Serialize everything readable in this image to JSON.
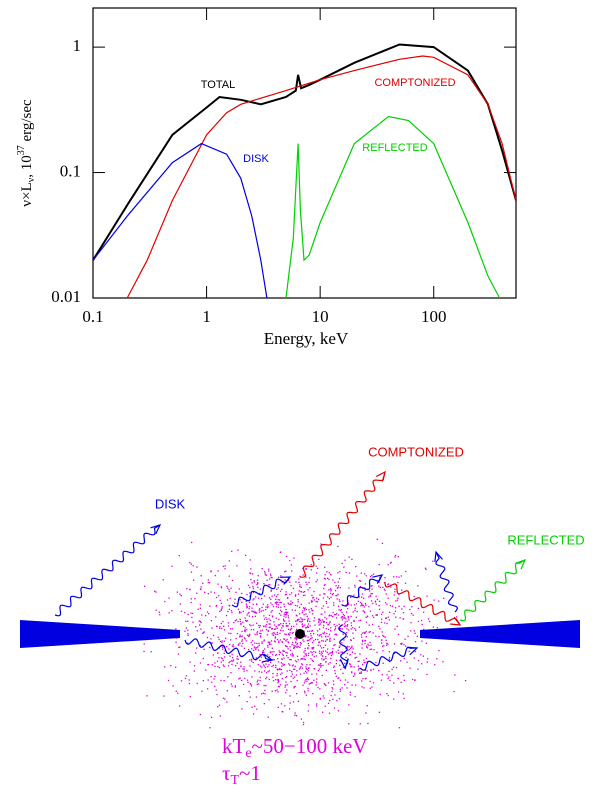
{
  "chart_data": {
    "type": "line",
    "x_label": "Energy, keV",
    "y_label": [
      "ν×L",
      "ν",
      ", 10",
      "37",
      " erg/sec"
    ],
    "log_x": true,
    "log_y": true,
    "xlim": [
      0.1,
      530
    ],
    "ylim": [
      0.01,
      2.05
    ],
    "xticks": [
      0.1,
      1,
      10,
      100
    ],
    "yticks": [
      0.01,
      0.1,
      1
    ],
    "series": [
      {
        "name": "TOTAL",
        "color": "#000000",
        "x": [
          0.1,
          0.2,
          0.5,
          1,
          1.3,
          2,
          3,
          5,
          6.1,
          6.4,
          6.8,
          8,
          10,
          20,
          50,
          100,
          200,
          300,
          400,
          530
        ],
        "values": [
          0.02,
          0.055,
          0.2,
          0.33,
          0.4,
          0.38,
          0.35,
          0.4,
          0.45,
          0.6,
          0.47,
          0.5,
          0.55,
          0.75,
          1.05,
          1.0,
          0.65,
          0.35,
          0.15,
          0.06
        ]
      },
      {
        "name": "COMPTONIZED",
        "color": "#e00000",
        "x": [
          0.2,
          0.3,
          0.5,
          1,
          1.5,
          2,
          5,
          10,
          20,
          50,
          80,
          100,
          200,
          300,
          400,
          530
        ],
        "values": [
          0.01,
          0.02,
          0.06,
          0.2,
          0.3,
          0.35,
          0.45,
          0.55,
          0.65,
          0.8,
          0.85,
          0.83,
          0.6,
          0.35,
          0.17,
          0.06
        ]
      },
      {
        "name": "DISK",
        "color": "#0000e0",
        "x": [
          0.1,
          0.2,
          0.5,
          0.9,
          1.5,
          2,
          2.5,
          3,
          3.4
        ],
        "values": [
          0.02,
          0.045,
          0.12,
          0.17,
          0.14,
          0.09,
          0.045,
          0.02,
          0.01
        ]
      },
      {
        "name": "REFLECTED",
        "color": "#00d000",
        "x": [
          5,
          5.8,
          6.2,
          6.4,
          6.7,
          7.2,
          8,
          10,
          20,
          40,
          60,
          100,
          200,
          300,
          380
        ],
        "values": [
          0.01,
          0.03,
          0.1,
          0.17,
          0.05,
          0.02,
          0.022,
          0.04,
          0.17,
          0.28,
          0.26,
          0.17,
          0.04,
          0.015,
          0.01
        ]
      }
    ]
  },
  "diagram": {
    "comptonized_label": "COMPTONIZED",
    "disk_label": "DISK",
    "reflected_label": "REFLECTED",
    "temperature_label": {
      "main": "kT",
      "sub": "e",
      "rest": "~50−100 keV"
    },
    "optical_depth_label": {
      "main": "τ",
      "sub": "T",
      "rest": "~1"
    }
  }
}
